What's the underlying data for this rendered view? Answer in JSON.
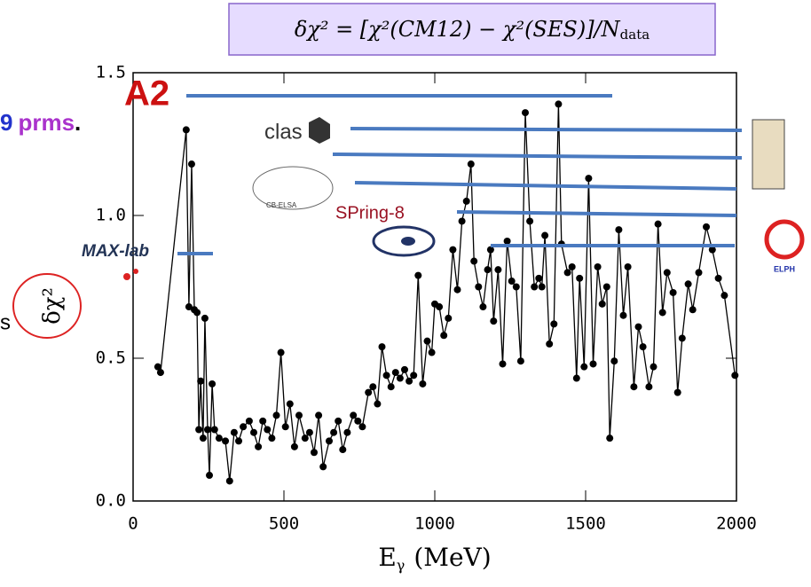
{
  "chart_data": {
    "type": "line",
    "title": {
      "main": "δχ² = [χ²(CM12) − χ²(SES)]/N",
      "sub": "data"
    },
    "y_label": "δχ²",
    "x_label": {
      "main": "E",
      "sub": "γ",
      "unit": "(MeV)"
    },
    "annotations": {
      "left_text": [
        "9",
        "prms",
        "."
      ],
      "left_fragment": "s",
      "logos": [
        "A2",
        "clas",
        "CB-ELSA",
        "SPring-8",
        "MAX-lab",
        "ELPH"
      ]
    },
    "color": "#000000",
    "xlim": [
      0,
      2000
    ],
    "ylim": [
      0,
      1.5
    ],
    "xticks": [
      0,
      500,
      1000,
      1500,
      2000
    ],
    "yticks": [
      {
        "value": 0,
        "label": "0.0"
      },
      {
        "value": 0.5,
        "label": "0.5"
      },
      {
        "value": 1,
        "label": "1.0"
      },
      {
        "value": 1.5,
        "label": "1.5"
      }
    ],
    "x": [
      82,
      91,
      176,
      185,
      194,
      203,
      212,
      218,
      224,
      232,
      238,
      247,
      253,
      262,
      270,
      285,
      306,
      320,
      335,
      350,
      365,
      385,
      400,
      415,
      430,
      445,
      460,
      475,
      490,
      505,
      520,
      535,
      550,
      570,
      585,
      600,
      615,
      630,
      650,
      665,
      680,
      695,
      710,
      730,
      745,
      760,
      780,
      795,
      810,
      825,
      840,
      855,
      870,
      885,
      900,
      915,
      930,
      945,
      960,
      975,
      990,
      1000,
      1015,
      1030,
      1045,
      1060,
      1075,
      1090,
      1105,
      1120,
      1130,
      1145,
      1160,
      1175,
      1185,
      1195,
      1210,
      1225,
      1240,
      1255,
      1270,
      1285,
      1300,
      1315,
      1330,
      1345,
      1355,
      1365,
      1380,
      1395,
      1410,
      1420,
      1440,
      1455,
      1470,
      1480,
      1495,
      1510,
      1525,
      1540,
      1555,
      1570,
      1580,
      1595,
      1610,
      1625,
      1640,
      1660,
      1675,
      1690,
      1710,
      1725,
      1740,
      1755,
      1770,
      1790,
      1805,
      1820,
      1840,
      1855,
      1875,
      1900,
      1920,
      1940,
      1960,
      1995
    ],
    "values": [
      0.47,
      0.45,
      1.3,
      0.68,
      1.18,
      0.67,
      0.66,
      0.25,
      0.42,
      0.22,
      0.64,
      0.25,
      0.09,
      0.41,
      0.25,
      0.22,
      0.21,
      0.07,
      0.24,
      0.21,
      0.26,
      0.28,
      0.24,
      0.19,
      0.28,
      0.25,
      0.22,
      0.3,
      0.52,
      0.26,
      0.34,
      0.19,
      0.3,
      0.22,
      0.24,
      0.17,
      0.3,
      0.12,
      0.21,
      0.24,
      0.28,
      0.18,
      0.24,
      0.3,
      0.28,
      0.26,
      0.38,
      0.4,
      0.34,
      0.54,
      0.44,
      0.4,
      0.45,
      0.43,
      0.46,
      0.42,
      0.44,
      0.79,
      0.41,
      0.56,
      0.52,
      0.69,
      0.68,
      0.58,
      0.64,
      0.88,
      0.74,
      0.98,
      1.05,
      1.18,
      0.84,
      0.75,
      0.68,
      0.81,
      0.88,
      0.63,
      0.81,
      0.48,
      0.91,
      0.77,
      0.75,
      0.49,
      1.36,
      0.98,
      0.75,
      0.78,
      0.75,
      0.93,
      0.55,
      0.62,
      1.39,
      0.9,
      0.8,
      0.82,
      0.43,
      0.78,
      0.47,
      1.13,
      0.48,
      0.82,
      0.69,
      0.75,
      0.22,
      0.49,
      0.95,
      0.65,
      0.82,
      0.4,
      0.61,
      0.54,
      0.4,
      0.47,
      0.97,
      0.66,
      0.8,
      0.73,
      0.38,
      0.57,
      0.76,
      0.67,
      0.8,
      0.96,
      0.88,
      0.78,
      0.72,
      0.44
    ]
  }
}
